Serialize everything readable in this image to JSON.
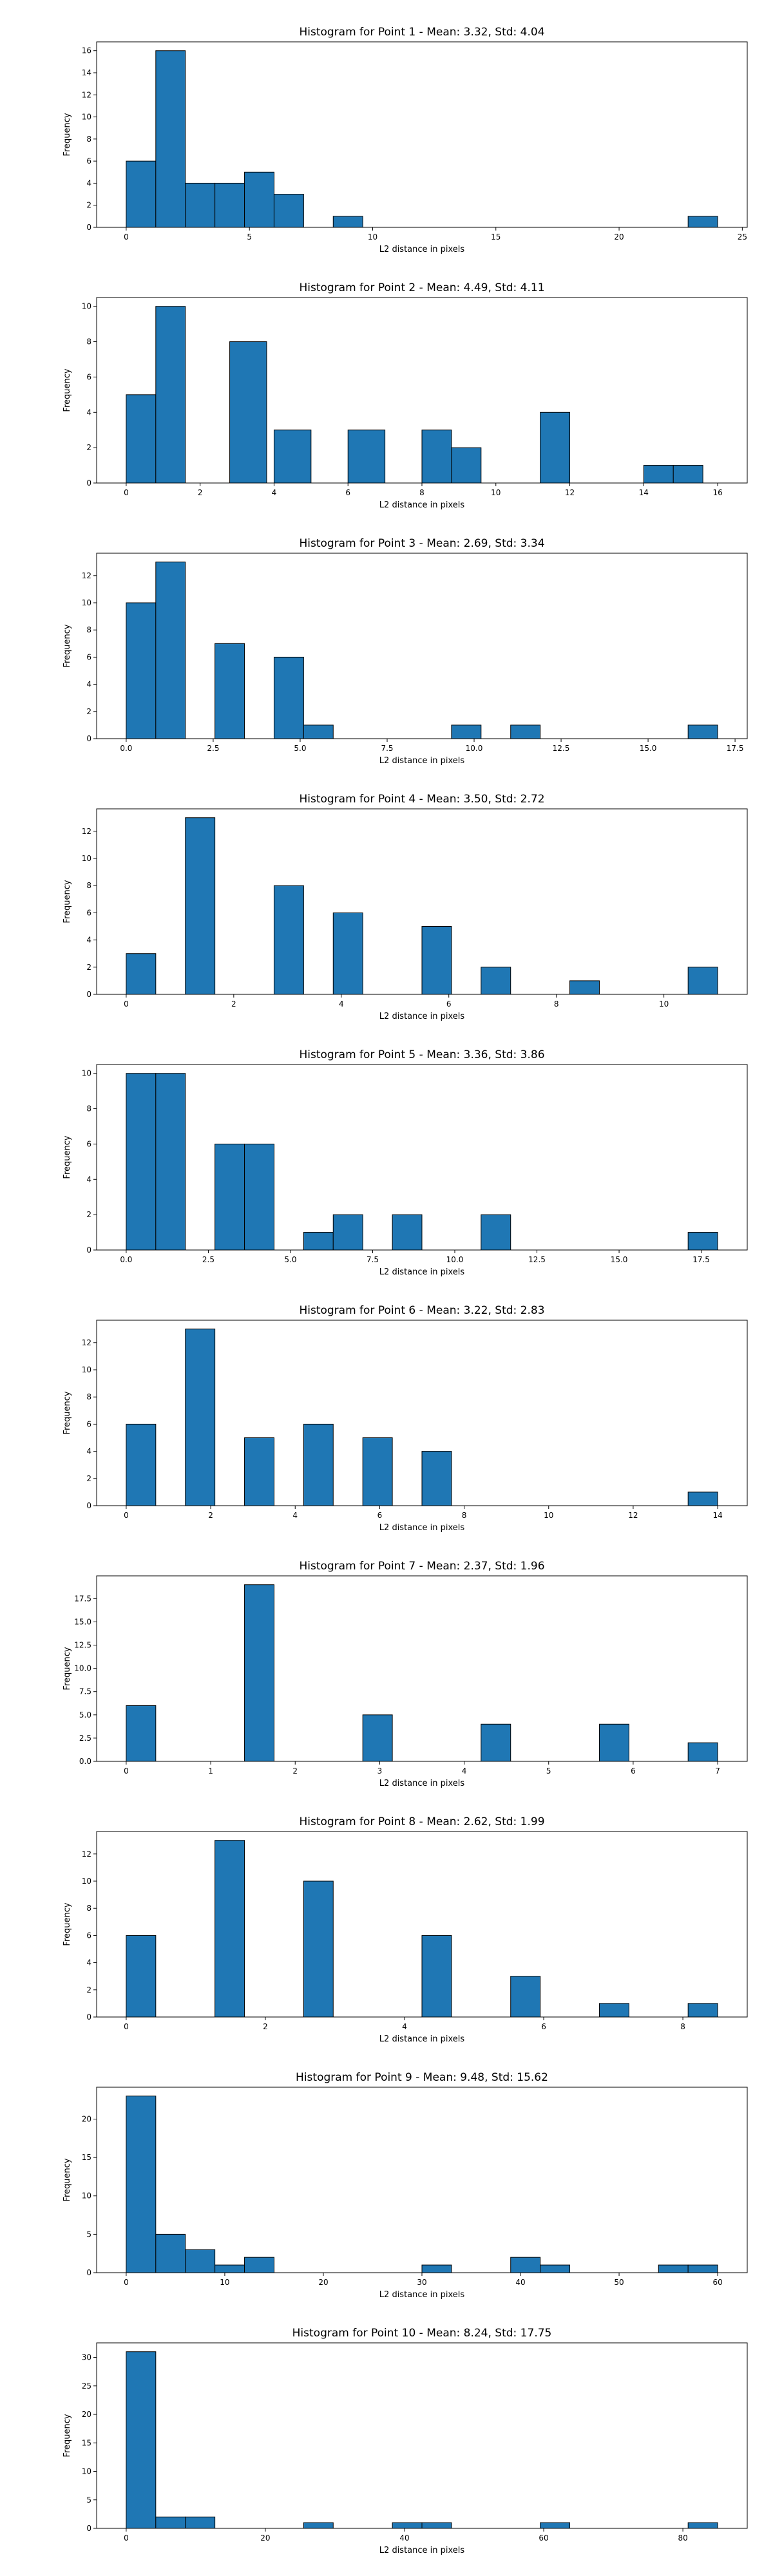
{
  "colors": {
    "bar": "#1f77b4",
    "edge": "#000000",
    "background": "#ffffff"
  },
  "chart_data": [
    {
      "type": "bar",
      "title": "Histogram for Point 1 - Mean: 3.32, Std: 4.04",
      "xlabel": "L2 distance in pixels",
      "ylabel": "Frequency",
      "xlim": [
        -1.2,
        25.2
      ],
      "ylim": [
        0,
        16.8
      ],
      "xticks": [
        0,
        5,
        10,
        15,
        20,
        25
      ],
      "xtick_labels": [
        "0",
        "5",
        "10",
        "15",
        "20",
        "25"
      ],
      "yticks": [
        0,
        2,
        4,
        6,
        8,
        10,
        12,
        14,
        16
      ],
      "ytick_labels": [
        "0",
        "2",
        "4",
        "6",
        "8",
        "10",
        "12",
        "14",
        "16"
      ],
      "bins": [
        [
          0,
          1.2,
          6
        ],
        [
          1.2,
          2.4,
          16
        ],
        [
          2.4,
          3.6,
          4
        ],
        [
          3.6,
          4.8,
          4
        ],
        [
          4.8,
          6.0,
          5
        ],
        [
          6.0,
          7.2,
          3
        ],
        [
          8.4,
          9.6,
          1
        ],
        [
          22.8,
          24.0,
          1
        ]
      ],
      "grid": false
    },
    {
      "type": "bar",
      "title": "Histogram for Point 2 - Mean: 4.49, Std: 4.11",
      "xlabel": "L2 distance in pixels",
      "ylabel": "Frequency",
      "xlim": [
        -0.8,
        16.8
      ],
      "ylim": [
        0,
        10.5
      ],
      "xticks": [
        0,
        2,
        4,
        6,
        8,
        10,
        12,
        14,
        16
      ],
      "xtick_labels": [
        "0",
        "2",
        "4",
        "6",
        "8",
        "10",
        "12",
        "14",
        "16"
      ],
      "yticks": [
        0,
        2,
        4,
        6,
        8,
        10
      ],
      "ytick_labels": [
        "0",
        "2",
        "4",
        "6",
        "8",
        "10"
      ],
      "bins": [
        [
          0,
          0.8,
          5
        ],
        [
          0.8,
          1.6,
          10
        ],
        [
          2.8,
          3.8,
          8
        ],
        [
          4.0,
          5.0,
          3
        ],
        [
          6.0,
          7.0,
          3
        ],
        [
          8.0,
          8.8,
          3
        ],
        [
          8.8,
          9.6,
          2
        ],
        [
          11.2,
          12.0,
          4
        ],
        [
          14.0,
          14.8,
          1
        ],
        [
          14.8,
          15.6,
          1
        ]
      ],
      "grid": false
    },
    {
      "type": "bar",
      "title": "Histogram for Point 3 - Mean: 2.69, Std: 3.34",
      "xlabel": "L2 distance in pixels",
      "ylabel": "Frequency",
      "xlim": [
        -0.85,
        17.85
      ],
      "ylim": [
        0,
        13.65
      ],
      "xticks": [
        0,
        2.5,
        5.0,
        7.5,
        10.0,
        12.5,
        15.0,
        17.5
      ],
      "xtick_labels": [
        "0.0",
        "2.5",
        "5.0",
        "7.5",
        "10.0",
        "12.5",
        "15.0",
        "17.5"
      ],
      "yticks": [
        0,
        2,
        4,
        6,
        8,
        10,
        12
      ],
      "ytick_labels": [
        "0",
        "2",
        "4",
        "6",
        "8",
        "10",
        "12"
      ],
      "bins": [
        [
          0,
          0.85,
          10
        ],
        [
          0.85,
          1.7,
          13
        ],
        [
          2.55,
          3.4,
          7
        ],
        [
          4.25,
          5.1,
          6
        ],
        [
          5.1,
          5.95,
          1
        ],
        [
          9.35,
          10.2,
          1
        ],
        [
          11.05,
          11.9,
          1
        ],
        [
          16.15,
          17.0,
          1
        ]
      ],
      "grid": false
    },
    {
      "type": "bar",
      "title": "Histogram for Point 4 - Mean: 3.50, Std: 2.72",
      "xlabel": "L2 distance in pixels",
      "ylabel": "Frequency",
      "xlim": [
        -0.55,
        11.55
      ],
      "ylim": [
        0,
        13.65
      ],
      "xticks": [
        0,
        2,
        4,
        6,
        8,
        10
      ],
      "xtick_labels": [
        "0",
        "2",
        "4",
        "6",
        "8",
        "10"
      ],
      "yticks": [
        0,
        2,
        4,
        6,
        8,
        10,
        12
      ],
      "ytick_labels": [
        "0",
        "2",
        "4",
        "6",
        "8",
        "10",
        "12"
      ],
      "bins": [
        [
          0,
          0.55,
          3
        ],
        [
          1.1,
          1.65,
          13
        ],
        [
          2.75,
          3.3,
          8
        ],
        [
          3.85,
          4.4,
          6
        ],
        [
          5.5,
          6.05,
          5
        ],
        [
          6.6,
          7.15,
          2
        ],
        [
          8.25,
          8.8,
          1
        ],
        [
          10.45,
          11.0,
          2
        ]
      ],
      "grid": false
    },
    {
      "type": "bar",
      "title": "Histogram for Point 5 - Mean: 3.36, Std: 3.86",
      "xlabel": "L2 distance in pixels",
      "ylabel": "Frequency",
      "xlim": [
        -0.9,
        18.9
      ],
      "ylim": [
        0,
        10.5
      ],
      "xticks": [
        0,
        2.5,
        5.0,
        7.5,
        10.0,
        12.5,
        15.0,
        17.5
      ],
      "xtick_labels": [
        "0.0",
        "2.5",
        "5.0",
        "7.5",
        "10.0",
        "12.5",
        "15.0",
        "17.5"
      ],
      "yticks": [
        0,
        2,
        4,
        6,
        8,
        10
      ],
      "ytick_labels": [
        "0",
        "2",
        "4",
        "6",
        "8",
        "10"
      ],
      "bins": [
        [
          0,
          0.9,
          10
        ],
        [
          0.9,
          1.8,
          10
        ],
        [
          2.7,
          3.6,
          6
        ],
        [
          3.6,
          4.5,
          6
        ],
        [
          5.4,
          6.3,
          1
        ],
        [
          6.3,
          7.2,
          2
        ],
        [
          8.1,
          9.0,
          2
        ],
        [
          10.8,
          11.7,
          2
        ],
        [
          17.1,
          18.0,
          1
        ]
      ],
      "grid": false
    },
    {
      "type": "bar",
      "title": "Histogram for Point 6 - Mean: 3.22, Std: 2.83",
      "xlabel": "L2 distance in pixels",
      "ylabel": "Frequency",
      "xlim": [
        -0.7,
        14.7
      ],
      "ylim": [
        0,
        13.65
      ],
      "xticks": [
        0,
        2,
        4,
        6,
        8,
        10,
        12,
        14
      ],
      "xtick_labels": [
        "0",
        "2",
        "4",
        "6",
        "8",
        "10",
        "12",
        "14"
      ],
      "yticks": [
        0,
        2,
        4,
        6,
        8,
        10,
        12
      ],
      "ytick_labels": [
        "0",
        "2",
        "4",
        "6",
        "8",
        "10",
        "12"
      ],
      "bins": [
        [
          0,
          0.7,
          6
        ],
        [
          1.4,
          2.1,
          13
        ],
        [
          2.8,
          3.5,
          5
        ],
        [
          4.2,
          4.9,
          6
        ],
        [
          5.6,
          6.3,
          5
        ],
        [
          7.0,
          7.7,
          4
        ],
        [
          13.3,
          14.0,
          1
        ]
      ],
      "grid": false
    },
    {
      "type": "bar",
      "title": "Histogram for Point 7 - Mean: 2.37, Std: 1.96",
      "xlabel": "L2 distance in pixels",
      "ylabel": "Frequency",
      "xlim": [
        -0.35,
        7.35
      ],
      "ylim": [
        0,
        19.95
      ],
      "xticks": [
        0,
        1,
        2,
        3,
        4,
        5,
        6,
        7
      ],
      "xtick_labels": [
        "0",
        "1",
        "2",
        "3",
        "4",
        "5",
        "6",
        "7"
      ],
      "yticks": [
        0,
        2.5,
        5.0,
        7.5,
        10.0,
        12.5,
        15.0,
        17.5
      ],
      "ytick_labels": [
        "0.0",
        "2.5",
        "5.0",
        "7.5",
        "10.0",
        "12.5",
        "15.0",
        "17.5"
      ],
      "bins": [
        [
          0,
          0.35,
          6
        ],
        [
          1.4,
          1.75,
          19
        ],
        [
          2.8,
          3.15,
          5
        ],
        [
          4.2,
          4.55,
          4
        ],
        [
          5.6,
          5.95,
          4
        ],
        [
          6.65,
          7.0,
          2
        ]
      ],
      "grid": false
    },
    {
      "type": "bar",
      "title": "Histogram for Point 8 - Mean: 2.62, Std: 1.99",
      "xlabel": "L2 distance in pixels",
      "ylabel": "Frequency",
      "xlim": [
        -0.425,
        8.925
      ],
      "ylim": [
        0,
        13.65
      ],
      "xticks": [
        0,
        2,
        4,
        6,
        8
      ],
      "xtick_labels": [
        "0",
        "2",
        "4",
        "6",
        "8"
      ],
      "yticks": [
        0,
        2,
        4,
        6,
        8,
        10,
        12
      ],
      "ytick_labels": [
        "0",
        "2",
        "4",
        "6",
        "8",
        "10",
        "12"
      ],
      "bins": [
        [
          0,
          0.425,
          6
        ],
        [
          1.275,
          1.7,
          13
        ],
        [
          2.55,
          2.975,
          10
        ],
        [
          4.25,
          4.675,
          6
        ],
        [
          5.525,
          5.95,
          3
        ],
        [
          6.8,
          7.225,
          1
        ],
        [
          8.075,
          8.5,
          1
        ]
      ],
      "grid": false
    },
    {
      "type": "bar",
      "title": "Histogram for Point 9 - Mean: 9.48, Std: 15.62",
      "xlabel": "L2 distance in pixels",
      "ylabel": "Frequency",
      "xlim": [
        -3.0,
        63.0
      ],
      "ylim": [
        0,
        24.15
      ],
      "xticks": [
        0,
        10,
        20,
        30,
        40,
        50,
        60
      ],
      "xtick_labels": [
        "0",
        "10",
        "20",
        "30",
        "40",
        "50",
        "60"
      ],
      "yticks": [
        0,
        5,
        10,
        15,
        20
      ],
      "ytick_labels": [
        "0",
        "5",
        "10",
        "15",
        "20"
      ],
      "bins": [
        [
          0,
          3,
          23
        ],
        [
          3,
          6,
          5
        ],
        [
          6,
          9,
          3
        ],
        [
          9,
          12,
          1
        ],
        [
          12,
          15,
          2
        ],
        [
          30,
          33,
          1
        ],
        [
          39,
          42,
          2
        ],
        [
          42,
          45,
          1
        ],
        [
          54,
          57,
          1
        ],
        [
          57,
          60,
          1
        ]
      ],
      "grid": false
    },
    {
      "type": "bar",
      "title": "Histogram for Point 10 - Mean: 8.24, Std: 17.75",
      "xlabel": "L2 distance in pixels",
      "ylabel": "Frequency",
      "xlim": [
        -4.25,
        89.25
      ],
      "ylim": [
        0,
        32.55
      ],
      "xticks": [
        0,
        20,
        40,
        60,
        80
      ],
      "xtick_labels": [
        "0",
        "20",
        "40",
        "60",
        "80"
      ],
      "yticks": [
        0,
        5,
        10,
        15,
        20,
        25,
        30
      ],
      "ytick_labels": [
        "0",
        "5",
        "10",
        "15",
        "20",
        "25",
        "30"
      ],
      "bins": [
        [
          0,
          4.25,
          31
        ],
        [
          4.25,
          8.5,
          2
        ],
        [
          8.5,
          12.75,
          2
        ],
        [
          25.5,
          29.75,
          1
        ],
        [
          38.25,
          42.5,
          1
        ],
        [
          42.5,
          46.75,
          1
        ],
        [
          59.5,
          63.75,
          1
        ],
        [
          80.75,
          85.0,
          1
        ]
      ],
      "grid": false
    }
  ]
}
